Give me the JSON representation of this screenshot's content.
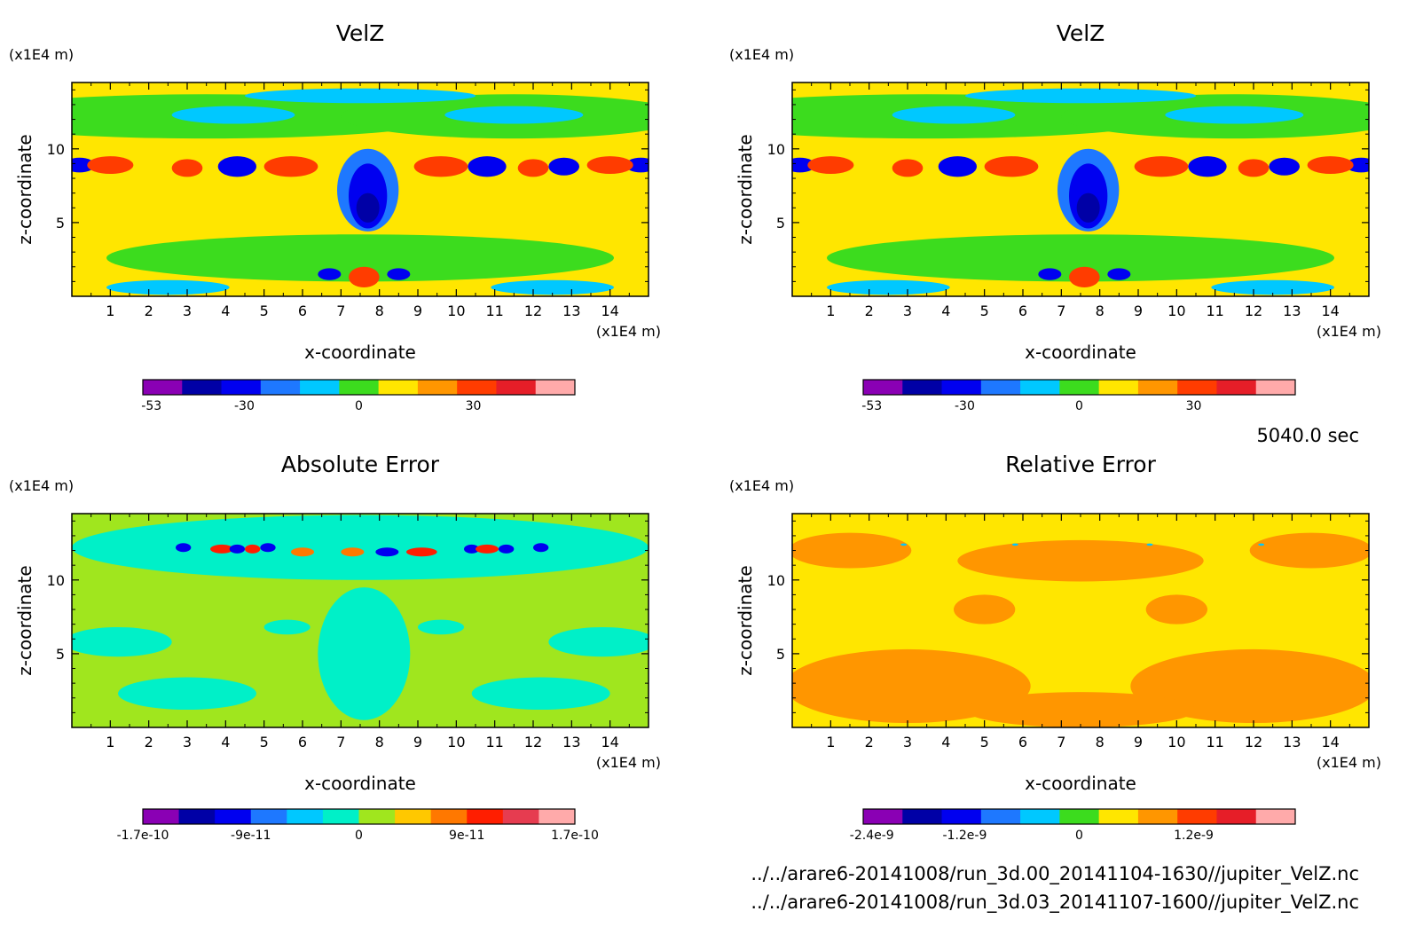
{
  "figure": {
    "time_label": "5040.0 sec",
    "footer_lines": [
      "../../arare6-20141008/run_3d.00_20141104-1630//jupiter_VelZ.nc",
      "../../arare6-20141008/run_3d.03_20141107-1600//jupiter_VelZ.nc"
    ]
  },
  "chart_data": [
    {
      "type": "heatmap",
      "title": "VelZ",
      "xlabel": "x-coordinate",
      "ylabel": "z-coordinate",
      "x_unit": "(x1E4 m)",
      "y_unit": "(x1E4 m)",
      "xlim": [
        0,
        15
      ],
      "ylim": [
        0,
        14.5
      ],
      "x_ticks": [
        "1",
        "2",
        "3",
        "4",
        "5",
        "6",
        "7",
        "8",
        "9",
        "10",
        "11",
        "12",
        "13",
        "14"
      ],
      "y_ticks": [
        "5",
        "10"
      ],
      "colorbar": {
        "colors": [
          "#8a00b4",
          "#0000a6",
          "#0000f0",
          "#1e78ff",
          "#00c8ff",
          "#3cdc1e",
          "#ffe600",
          "#ff9600",
          "#ff3c00",
          "#e61e28",
          "#ffaaaa"
        ],
        "tick_labels": [
          "-53",
          "-30",
          "0",
          "30"
        ]
      },
      "background": "#ffe600",
      "regions": [
        {
          "x": 3.5,
          "y": 12.2,
          "rx": 6.5,
          "ry": 1.5,
          "color": "#3cdc1e"
        },
        {
          "x": 11.5,
          "y": 12.2,
          "rx": 4.5,
          "ry": 1.5,
          "color": "#3cdc1e"
        },
        {
          "x": 7.5,
          "y": 2.6,
          "rx": 6.6,
          "ry": 1.6,
          "color": "#3cdc1e"
        },
        {
          "x": 4.2,
          "y": 12.3,
          "rx": 1.6,
          "ry": 0.6,
          "color": "#00c8ff"
        },
        {
          "x": 11.5,
          "y": 12.3,
          "rx": 1.8,
          "ry": 0.6,
          "color": "#00c8ff"
        },
        {
          "x": 7.5,
          "y": 13.6,
          "rx": 3.0,
          "ry": 0.5,
          "color": "#00c8ff"
        },
        {
          "x": 2.5,
          "y": 0.6,
          "rx": 1.6,
          "ry": 0.5,
          "color": "#00c8ff"
        },
        {
          "x": 12.5,
          "y": 0.6,
          "rx": 1.6,
          "ry": 0.5,
          "color": "#00c8ff"
        },
        {
          "x": 7.7,
          "y": 7.2,
          "rx": 0.8,
          "ry": 2.8,
          "color": "#1e78ff"
        },
        {
          "x": 7.7,
          "y": 6.8,
          "rx": 0.5,
          "ry": 2.2,
          "color": "#0000f0"
        },
        {
          "x": 7.7,
          "y": 6.0,
          "rx": 0.3,
          "ry": 1.0,
          "color": "#0000a6"
        },
        {
          "x": 0.2,
          "y": 8.9,
          "rx": 0.4,
          "ry": 0.5,
          "color": "#0000f0"
        },
        {
          "x": 14.8,
          "y": 8.9,
          "rx": 0.4,
          "ry": 0.5,
          "color": "#0000f0"
        },
        {
          "x": 1.0,
          "y": 8.9,
          "rx": 0.6,
          "ry": 0.6,
          "color": "#ff3c00"
        },
        {
          "x": 3.0,
          "y": 8.7,
          "rx": 0.4,
          "ry": 0.6,
          "color": "#ff3c00"
        },
        {
          "x": 4.3,
          "y": 8.8,
          "rx": 0.5,
          "ry": 0.7,
          "color": "#0000f0"
        },
        {
          "x": 5.7,
          "y": 8.8,
          "rx": 0.7,
          "ry": 0.7,
          "color": "#ff3c00"
        },
        {
          "x": 9.6,
          "y": 8.8,
          "rx": 0.7,
          "ry": 0.7,
          "color": "#ff3c00"
        },
        {
          "x": 10.8,
          "y": 8.8,
          "rx": 0.5,
          "ry": 0.7,
          "color": "#0000f0"
        },
        {
          "x": 12.0,
          "y": 8.7,
          "rx": 0.4,
          "ry": 0.6,
          "color": "#ff3c00"
        },
        {
          "x": 12.8,
          "y": 8.8,
          "rx": 0.4,
          "ry": 0.6,
          "color": "#0000f0"
        },
        {
          "x": 14.0,
          "y": 8.9,
          "rx": 0.6,
          "ry": 0.6,
          "color": "#ff3c00"
        },
        {
          "x": 7.6,
          "y": 1.3,
          "rx": 0.4,
          "ry": 0.7,
          "color": "#ff3c00"
        },
        {
          "x": 6.7,
          "y": 1.5,
          "rx": 0.3,
          "ry": 0.4,
          "color": "#0000f0"
        },
        {
          "x": 8.5,
          "y": 1.5,
          "rx": 0.3,
          "ry": 0.4,
          "color": "#0000f0"
        }
      ]
    },
    {
      "type": "heatmap",
      "title": "VelZ",
      "xlabel": "x-coordinate",
      "ylabel": "z-coordinate",
      "x_unit": "(x1E4 m)",
      "y_unit": "(x1E4 m)",
      "xlim": [
        0,
        15
      ],
      "ylim": [
        0,
        14.5
      ],
      "x_ticks": [
        "1",
        "2",
        "3",
        "4",
        "5",
        "6",
        "7",
        "8",
        "9",
        "10",
        "11",
        "12",
        "13",
        "14"
      ],
      "y_ticks": [
        "5",
        "10"
      ],
      "colorbar": {
        "colors": [
          "#8a00b4",
          "#0000a6",
          "#0000f0",
          "#1e78ff",
          "#00c8ff",
          "#3cdc1e",
          "#ffe600",
          "#ff9600",
          "#ff3c00",
          "#e61e28",
          "#ffaaaa"
        ],
        "tick_labels": [
          "-53",
          "-30",
          "0",
          "30"
        ]
      },
      "background": "#ffe600",
      "regions": [
        {
          "x": 3.5,
          "y": 12.2,
          "rx": 6.5,
          "ry": 1.5,
          "color": "#3cdc1e"
        },
        {
          "x": 11.5,
          "y": 12.2,
          "rx": 4.5,
          "ry": 1.5,
          "color": "#3cdc1e"
        },
        {
          "x": 7.5,
          "y": 2.6,
          "rx": 6.6,
          "ry": 1.6,
          "color": "#3cdc1e"
        },
        {
          "x": 4.2,
          "y": 12.3,
          "rx": 1.6,
          "ry": 0.6,
          "color": "#00c8ff"
        },
        {
          "x": 11.5,
          "y": 12.3,
          "rx": 1.8,
          "ry": 0.6,
          "color": "#00c8ff"
        },
        {
          "x": 7.5,
          "y": 13.6,
          "rx": 3.0,
          "ry": 0.5,
          "color": "#00c8ff"
        },
        {
          "x": 2.5,
          "y": 0.6,
          "rx": 1.6,
          "ry": 0.5,
          "color": "#00c8ff"
        },
        {
          "x": 12.5,
          "y": 0.6,
          "rx": 1.6,
          "ry": 0.5,
          "color": "#00c8ff"
        },
        {
          "x": 7.7,
          "y": 7.2,
          "rx": 0.8,
          "ry": 2.8,
          "color": "#1e78ff"
        },
        {
          "x": 7.7,
          "y": 6.8,
          "rx": 0.5,
          "ry": 2.2,
          "color": "#0000f0"
        },
        {
          "x": 7.7,
          "y": 6.0,
          "rx": 0.3,
          "ry": 1.0,
          "color": "#0000a6"
        },
        {
          "x": 0.2,
          "y": 8.9,
          "rx": 0.4,
          "ry": 0.5,
          "color": "#0000f0"
        },
        {
          "x": 14.8,
          "y": 8.9,
          "rx": 0.4,
          "ry": 0.5,
          "color": "#0000f0"
        },
        {
          "x": 1.0,
          "y": 8.9,
          "rx": 0.6,
          "ry": 0.6,
          "color": "#ff3c00"
        },
        {
          "x": 3.0,
          "y": 8.7,
          "rx": 0.4,
          "ry": 0.6,
          "color": "#ff3c00"
        },
        {
          "x": 4.3,
          "y": 8.8,
          "rx": 0.5,
          "ry": 0.7,
          "color": "#0000f0"
        },
        {
          "x": 5.7,
          "y": 8.8,
          "rx": 0.7,
          "ry": 0.7,
          "color": "#ff3c00"
        },
        {
          "x": 9.6,
          "y": 8.8,
          "rx": 0.7,
          "ry": 0.7,
          "color": "#ff3c00"
        },
        {
          "x": 10.8,
          "y": 8.8,
          "rx": 0.5,
          "ry": 0.7,
          "color": "#0000f0"
        },
        {
          "x": 12.0,
          "y": 8.7,
          "rx": 0.4,
          "ry": 0.6,
          "color": "#ff3c00"
        },
        {
          "x": 12.8,
          "y": 8.8,
          "rx": 0.4,
          "ry": 0.6,
          "color": "#0000f0"
        },
        {
          "x": 14.0,
          "y": 8.9,
          "rx": 0.6,
          "ry": 0.6,
          "color": "#ff3c00"
        },
        {
          "x": 7.6,
          "y": 1.3,
          "rx": 0.4,
          "ry": 0.7,
          "color": "#ff3c00"
        },
        {
          "x": 6.7,
          "y": 1.5,
          "rx": 0.3,
          "ry": 0.4,
          "color": "#0000f0"
        },
        {
          "x": 8.5,
          "y": 1.5,
          "rx": 0.3,
          "ry": 0.4,
          "color": "#0000f0"
        }
      ]
    },
    {
      "type": "heatmap",
      "title": "Absolute Error",
      "xlabel": "x-coordinate",
      "ylabel": "z-coordinate",
      "x_unit": "(x1E4 m)",
      "y_unit": "(x1E4 m)",
      "xlim": [
        0,
        15
      ],
      "ylim": [
        0,
        14.5
      ],
      "x_ticks": [
        "1",
        "2",
        "3",
        "4",
        "5",
        "6",
        "7",
        "8",
        "9",
        "10",
        "11",
        "12",
        "13",
        "14"
      ],
      "y_ticks": [
        "5",
        "10"
      ],
      "colorbar": {
        "colors": [
          "#8a00b4",
          "#0000a6",
          "#0000f0",
          "#1e78ff",
          "#00c8ff",
          "#00f0c8",
          "#a0e61e",
          "#ffc800",
          "#ff7800",
          "#ff1e00",
          "#e63c50",
          "#ffaaaa"
        ],
        "tick_labels": [
          "-1.7e-10",
          "-9e-11",
          "0",
          "9e-11",
          "1.7e-10"
        ]
      },
      "background": "#a0e61e",
      "regions": [
        {
          "x": 7.5,
          "y": 12.2,
          "rx": 7.5,
          "ry": 2.2,
          "color": "#00f0c8"
        },
        {
          "x": 7.6,
          "y": 5.0,
          "rx": 1.2,
          "ry": 4.5,
          "color": "#00f0c8"
        },
        {
          "x": 1.2,
          "y": 5.8,
          "rx": 1.4,
          "ry": 1.0,
          "color": "#00f0c8"
        },
        {
          "x": 13.8,
          "y": 5.8,
          "rx": 1.4,
          "ry": 1.0,
          "color": "#00f0c8"
        },
        {
          "x": 3.0,
          "y": 2.3,
          "rx": 1.8,
          "ry": 1.1,
          "color": "#00f0c8"
        },
        {
          "x": 12.2,
          "y": 2.3,
          "rx": 1.8,
          "ry": 1.1,
          "color": "#00f0c8"
        },
        {
          "x": 5.6,
          "y": 6.8,
          "rx": 0.6,
          "ry": 0.5,
          "color": "#00f0c8"
        },
        {
          "x": 9.6,
          "y": 6.8,
          "rx": 0.6,
          "ry": 0.5,
          "color": "#00f0c8"
        },
        {
          "x": 2.9,
          "y": 12.2,
          "rx": 0.2,
          "ry": 0.3,
          "color": "#0000f0"
        },
        {
          "x": 3.9,
          "y": 12.1,
          "rx": 0.3,
          "ry": 0.3,
          "color": "#ff1e00"
        },
        {
          "x": 4.3,
          "y": 12.1,
          "rx": 0.2,
          "ry": 0.3,
          "color": "#0000f0"
        },
        {
          "x": 4.7,
          "y": 12.1,
          "rx": 0.2,
          "ry": 0.3,
          "color": "#ff1e00"
        },
        {
          "x": 5.1,
          "y": 12.2,
          "rx": 0.2,
          "ry": 0.3,
          "color": "#0000f0"
        },
        {
          "x": 6.0,
          "y": 11.9,
          "rx": 0.3,
          "ry": 0.3,
          "color": "#ff7800"
        },
        {
          "x": 7.3,
          "y": 11.9,
          "rx": 0.3,
          "ry": 0.3,
          "color": "#ff7800"
        },
        {
          "x": 8.2,
          "y": 11.9,
          "rx": 0.3,
          "ry": 0.3,
          "color": "#0000f0"
        },
        {
          "x": 9.1,
          "y": 11.9,
          "rx": 0.4,
          "ry": 0.3,
          "color": "#ff1e00"
        },
        {
          "x": 10.4,
          "y": 12.1,
          "rx": 0.2,
          "ry": 0.3,
          "color": "#0000f0"
        },
        {
          "x": 10.8,
          "y": 12.1,
          "rx": 0.3,
          "ry": 0.3,
          "color": "#ff1e00"
        },
        {
          "x": 11.3,
          "y": 12.1,
          "rx": 0.2,
          "ry": 0.3,
          "color": "#0000f0"
        },
        {
          "x": 12.2,
          "y": 12.2,
          "rx": 0.2,
          "ry": 0.3,
          "color": "#0000f0"
        }
      ]
    },
    {
      "type": "heatmap",
      "title": "Relative Error",
      "xlabel": "x-coordinate",
      "ylabel": "z-coordinate",
      "x_unit": "(x1E4 m)",
      "y_unit": "(x1E4 m)",
      "xlim": [
        0,
        15
      ],
      "ylim": [
        0,
        14.5
      ],
      "x_ticks": [
        "1",
        "2",
        "3",
        "4",
        "5",
        "6",
        "7",
        "8",
        "9",
        "10",
        "11",
        "12",
        "13",
        "14"
      ],
      "y_ticks": [
        "5",
        "10"
      ],
      "colorbar": {
        "colors": [
          "#8a00b4",
          "#0000a6",
          "#0000f0",
          "#1e78ff",
          "#00c8ff",
          "#3cdc1e",
          "#ffe600",
          "#ff9600",
          "#ff3c00",
          "#e61e28",
          "#ffaaaa"
        ],
        "tick_labels": [
          "-2.4e-9",
          "-1.2e-9",
          "0",
          "1.2e-9"
        ]
      },
      "background": "#ffe600",
      "regions": [
        {
          "x": 3.0,
          "y": 2.8,
          "rx": 3.2,
          "ry": 2.5,
          "color": "#ff9600"
        },
        {
          "x": 12.0,
          "y": 2.8,
          "rx": 3.2,
          "ry": 2.5,
          "color": "#ff9600"
        },
        {
          "x": 7.5,
          "y": 1.2,
          "rx": 3.0,
          "ry": 1.2,
          "color": "#ff9600"
        },
        {
          "x": 7.5,
          "y": 11.3,
          "rx": 3.2,
          "ry": 1.4,
          "color": "#ff9600"
        },
        {
          "x": 1.5,
          "y": 12.0,
          "rx": 1.6,
          "ry": 1.2,
          "color": "#ff9600"
        },
        {
          "x": 13.5,
          "y": 12.0,
          "rx": 1.6,
          "ry": 1.2,
          "color": "#ff9600"
        },
        {
          "x": 5.0,
          "y": 8.0,
          "rx": 0.8,
          "ry": 1.0,
          "color": "#ff9600"
        },
        {
          "x": 10.0,
          "y": 8.0,
          "rx": 0.8,
          "ry": 1.0,
          "color": "#ff9600"
        },
        {
          "x": 7.5,
          "y": 7.0,
          "rx": 0.6,
          "ry": 1.6,
          "color": "#ffe600"
        },
        {
          "x": 7.5,
          "y": 4.0,
          "rx": 1.2,
          "ry": 1.0,
          "color": "#ffe600"
        },
        {
          "x": 2.9,
          "y": 12.4,
          "rx": 0.08,
          "ry": 0.08,
          "color": "#00c8ff"
        },
        {
          "x": 5.8,
          "y": 12.4,
          "rx": 0.08,
          "ry": 0.08,
          "color": "#00c8ff"
        },
        {
          "x": 9.3,
          "y": 12.4,
          "rx": 0.08,
          "ry": 0.08,
          "color": "#00c8ff"
        },
        {
          "x": 12.2,
          "y": 12.4,
          "rx": 0.08,
          "ry": 0.08,
          "color": "#00c8ff"
        }
      ]
    }
  ]
}
